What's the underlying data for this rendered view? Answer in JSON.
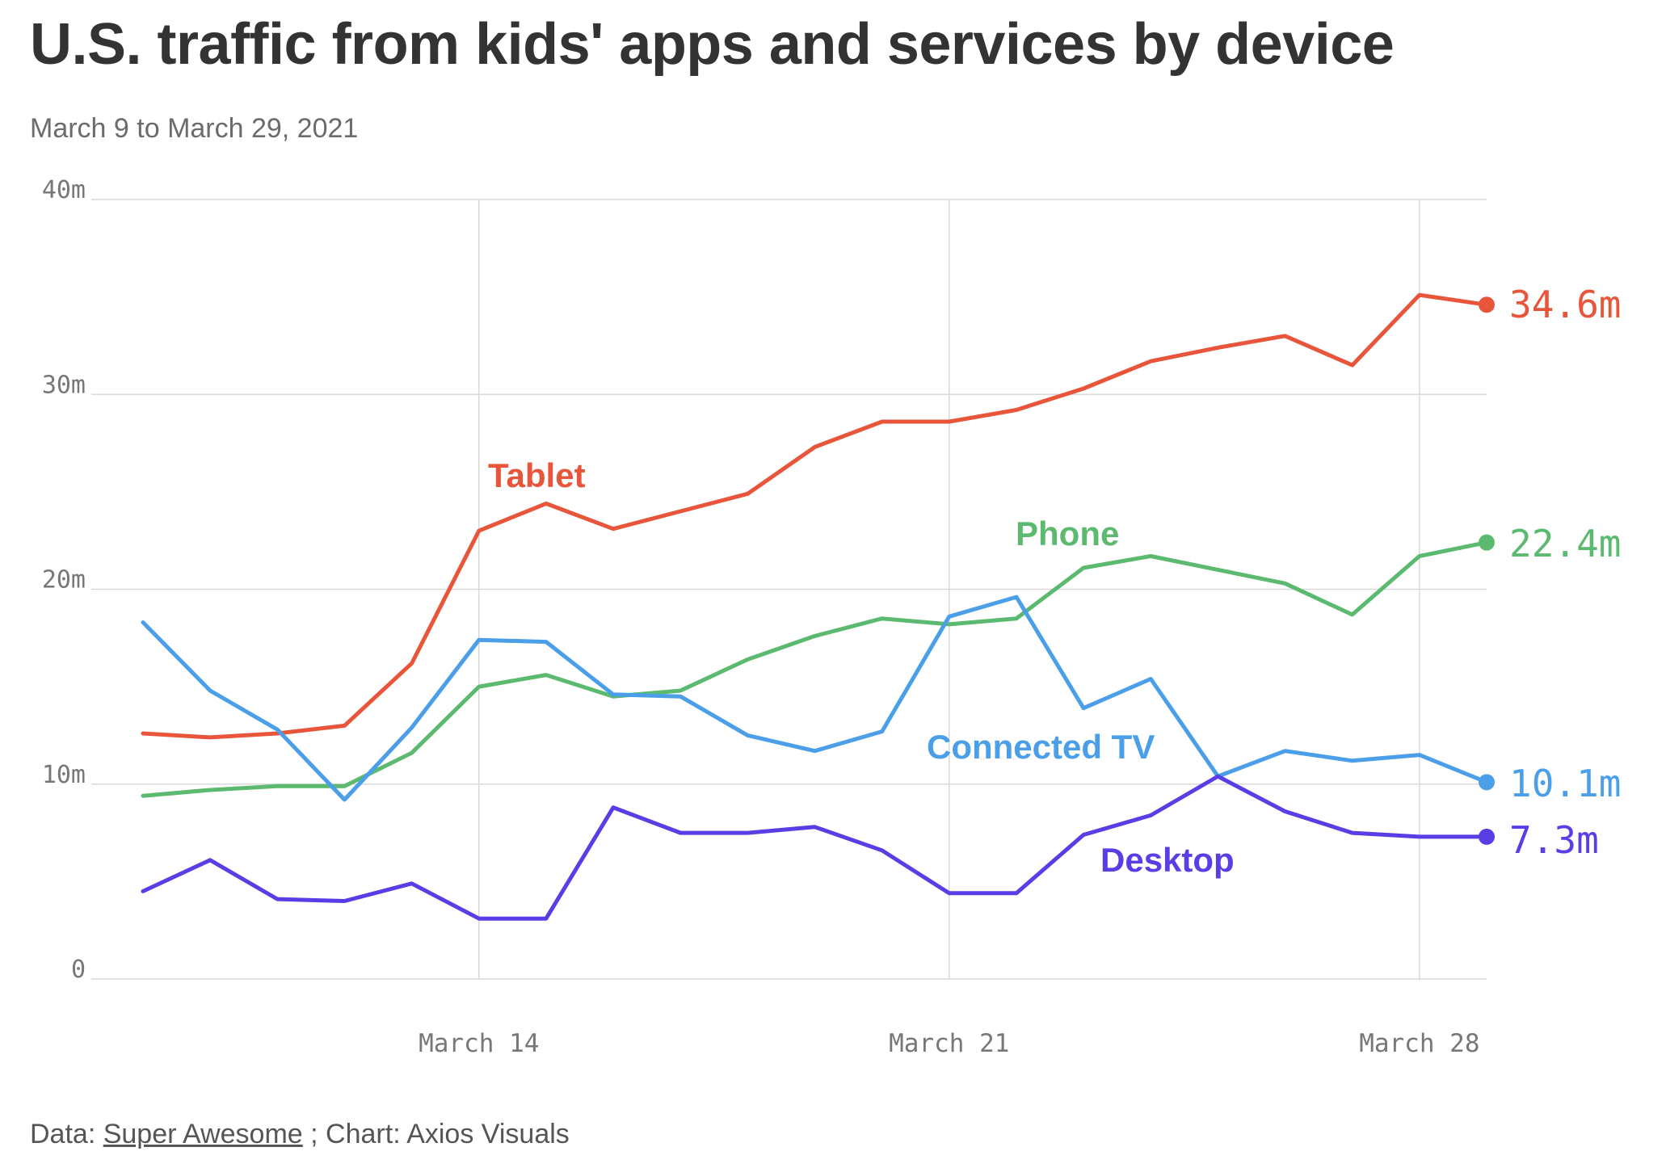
{
  "title": "U.S. traffic from kids' apps and services by device",
  "subtitle": "March 9 to March 29, 2021",
  "footer": {
    "data_prefix": "Data:",
    "source_name": "Super Awesome",
    "separator": ";",
    "chart_credit": "Chart: Axios Visuals"
  },
  "colors": {
    "Tablet": "#e8553a",
    "Phone": "#5bba6f",
    "Connected TV": "#4a9fe8",
    "Desktop": "#5b3de6",
    "grid": "#d9d9d9",
    "tick": "#777777"
  },
  "chart_data": {
    "type": "line",
    "title": "U.S. traffic from kids' apps and services by device",
    "subtitle": "March 9 to March 29, 2021",
    "xlabel": "",
    "ylabel": "",
    "ylim": [
      0,
      40
    ],
    "y_ticks": [
      0,
      10,
      20,
      30,
      40
    ],
    "y_tick_labels": [
      "0",
      "10m",
      "20m",
      "30m",
      "40m"
    ],
    "x": [
      "March 9",
      "March 10",
      "March 11",
      "March 12",
      "March 13",
      "March 14",
      "March 15",
      "March 16",
      "March 17",
      "March 18",
      "March 19",
      "March 20",
      "March 21",
      "March 22",
      "March 23",
      "March 24",
      "March 25",
      "March 26",
      "March 27",
      "March 28",
      "March 29"
    ],
    "x_ticks": [
      {
        "x": "March 14",
        "label": "March 14"
      },
      {
        "x": "March 21",
        "label": "March 21"
      },
      {
        "x": "March 28",
        "label": "March 28"
      }
    ],
    "grid": true,
    "units": "millions",
    "series": [
      {
        "name": "Tablet",
        "label": "Tablet",
        "end_label": "34.6m",
        "values": [
          12.6,
          12.4,
          12.6,
          13.0,
          16.2,
          23.0,
          24.4,
          23.1,
          24.0,
          24.9,
          27.3,
          28.6,
          28.6,
          29.2,
          30.3,
          31.7,
          32.4,
          33.0,
          31.5,
          35.1,
          34.6
        ]
      },
      {
        "name": "Phone",
        "label": "Phone",
        "end_label": "22.4m",
        "values": [
          9.4,
          9.7,
          9.9,
          9.9,
          11.6,
          15.0,
          15.6,
          14.5,
          14.8,
          16.4,
          17.6,
          18.5,
          18.2,
          18.5,
          21.1,
          21.7,
          21.0,
          20.3,
          18.7,
          21.7,
          22.4
        ]
      },
      {
        "name": "Connected TV",
        "label": "Connected TV",
        "end_label": "10.1m",
        "values": [
          18.3,
          14.8,
          12.8,
          9.2,
          12.9,
          17.4,
          17.3,
          14.6,
          14.5,
          12.5,
          11.7,
          12.7,
          18.6,
          19.6,
          13.9,
          15.4,
          10.4,
          11.7,
          11.2,
          11.5,
          10.1
        ]
      },
      {
        "name": "Desktop",
        "label": "Desktop",
        "end_label": "7.3m",
        "values": [
          4.5,
          6.1,
          4.1,
          4.0,
          4.9,
          3.1,
          3.1,
          8.8,
          7.5,
          7.5,
          7.8,
          6.6,
          4.4,
          4.4,
          7.4,
          8.4,
          10.4,
          8.6,
          7.5,
          7.3,
          7.3
        ]
      }
    ]
  }
}
